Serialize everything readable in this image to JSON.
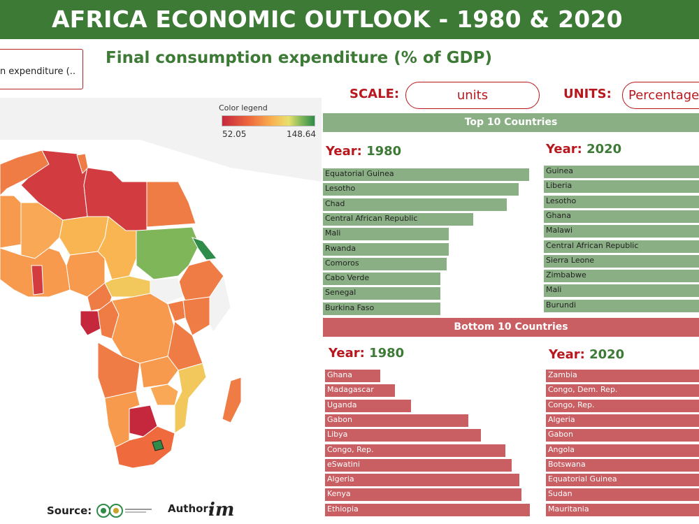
{
  "header": {
    "title": "AFRICA ECONOMIC OUTLOOK - 1980 & 2020"
  },
  "measure_select": {
    "value": "n expenditure  (.."
  },
  "page_subtitle": "Final consumption expenditure  (% of GDP)",
  "controls": {
    "scale_label": "SCALE:",
    "scale_value": "units",
    "units_label": "UNITS:",
    "units_value": "Percentage"
  },
  "map": {
    "legend_title": "Color legend",
    "legend_min": "52.05",
    "legend_max": "148.64",
    "colors": {
      "low": "#c5283d",
      "mid": "#f9b552",
      "high": "#2e8b4a"
    }
  },
  "top10": {
    "banner": "Top 10 Countries",
    "year_label": "Year:",
    "left": {
      "year": "1980",
      "countries": [
        "Equatorial Guinea",
        "Lesotho",
        "Chad",
        "Central African Republic",
        "Mali",
        "Rwanda",
        "Comoros",
        "Cabo Verde",
        "Senegal",
        "Burkina Faso"
      ],
      "bar_fraction": [
        1.0,
        0.95,
        0.89,
        0.73,
        0.61,
        0.61,
        0.6,
        0.57,
        0.57,
        0.57
      ]
    },
    "right": {
      "year": "2020",
      "countries": [
        "Guinea",
        "Liberia",
        "Lesotho",
        "Ghana",
        "Malawi",
        "Central African Republic",
        "Sierra Leone",
        "Zimbabwe",
        "Mali",
        "Burundi"
      ],
      "bar_fraction": [
        1.0,
        1.0,
        1.0,
        1.0,
        1.0,
        1.0,
        1.0,
        1.0,
        1.0,
        1.0
      ]
    }
  },
  "bottom10": {
    "banner": "Bottom 10 Countries",
    "year_label": "Year:",
    "left": {
      "year": "1980",
      "countries": [
        "Ghana",
        "Madagascar",
        "Uganda",
        "Gabon",
        "Libya",
        "Congo, Rep.",
        "eSwatini",
        "Algeria",
        "Kenya",
        "Ethiopia"
      ],
      "bar_fraction": [
        0.27,
        0.34,
        0.42,
        0.7,
        0.76,
        0.88,
        0.91,
        0.95,
        0.96,
        1.0
      ]
    },
    "right": {
      "year": "2020",
      "countries": [
        "Zambia",
        "Congo, Dem. Rep.",
        "Congo, Rep.",
        "Algeria",
        "Gabon",
        "Angola",
        "Botswana",
        "Equatorial Guinea",
        "Sudan",
        "Mauritania"
      ],
      "bar_fraction": [
        1.0,
        1.0,
        1.0,
        1.0,
        1.0,
        1.0,
        1.0,
        1.0,
        1.0,
        1.0
      ]
    }
  },
  "footer": {
    "source_label": "Source:",
    "author_label": "Author:",
    "author_logo": "im"
  }
}
